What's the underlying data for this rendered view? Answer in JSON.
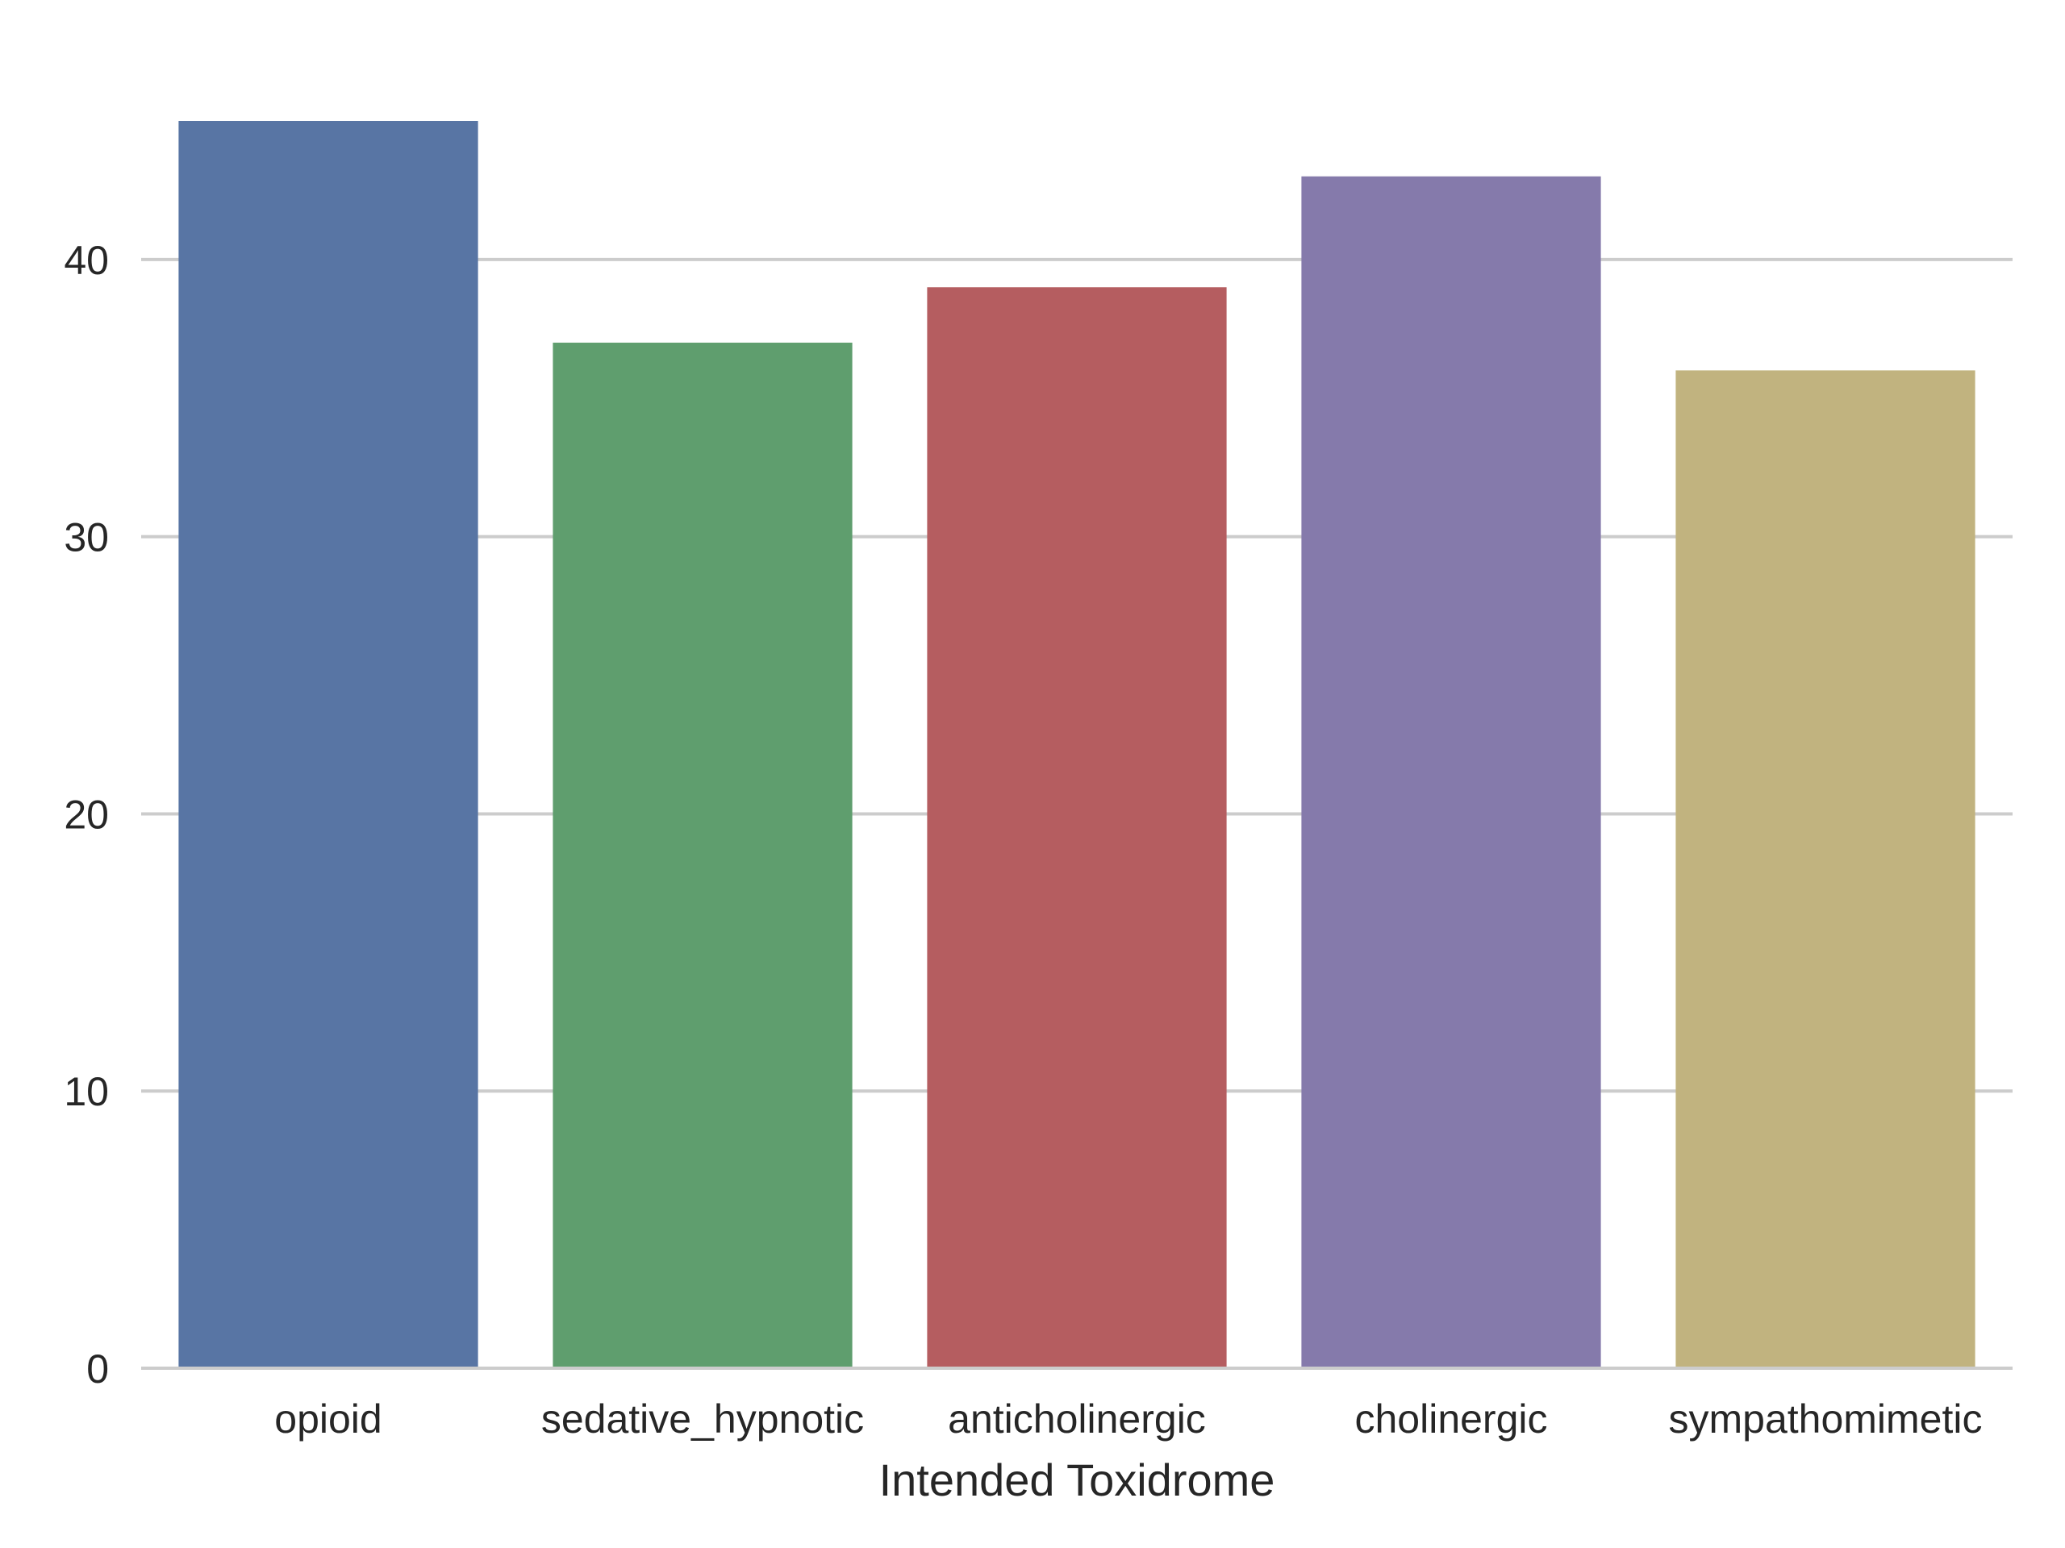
{
  "chart_data": {
    "type": "bar",
    "title": "",
    "xlabel": "Intended Toxidrome",
    "ylabel": "",
    "categories": [
      "opioid",
      "sedative_hypnotic",
      "anticholinergic",
      "cholinergic",
      "sympathomimetic"
    ],
    "values": [
      45,
      37,
      39,
      43,
      36
    ],
    "colors": [
      "#5875a4",
      "#5f9e6e",
      "#b55d60",
      "#857aab",
      "#c1b37f"
    ],
    "ylim": [
      0,
      45
    ],
    "yticks": [
      0,
      10,
      20,
      30,
      40
    ],
    "grid": "horizontal",
    "legend": "none"
  }
}
